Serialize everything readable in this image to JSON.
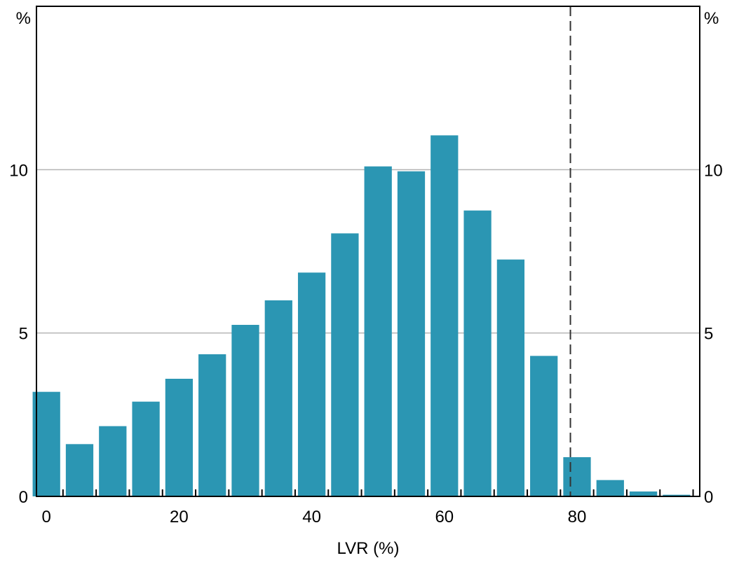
{
  "chart_data": {
    "type": "bar",
    "title": "",
    "xlabel": "LVR (%)",
    "ylabel_left": "%",
    "ylabel_right": "%",
    "xlim": [
      -1.5,
      98.5
    ],
    "ylim": [
      0,
      15
    ],
    "x_ticks": [
      0,
      20,
      40,
      60,
      80
    ],
    "y_ticks": [
      0,
      5,
      10
    ],
    "gridlines": [
      5,
      10
    ],
    "bin_width": 5,
    "bin_starts": [
      0,
      5,
      10,
      15,
      20,
      25,
      30,
      35,
      40,
      45,
      50,
      55,
      60,
      65,
      70,
      75,
      80,
      85,
      90,
      95
    ],
    "values": [
      3.2,
      1.6,
      2.15,
      2.9,
      3.6,
      4.35,
      5.25,
      6.0,
      6.85,
      8.05,
      10.1,
      9.95,
      11.05,
      8.75,
      7.25,
      4.3,
      1.2,
      0.5,
      0.15,
      0.05
    ],
    "reference_line_x": 79,
    "bar_color": "#2b96b3",
    "grid_color": "#b4b4b4",
    "grid": true,
    "legend": "none"
  }
}
